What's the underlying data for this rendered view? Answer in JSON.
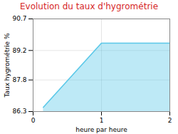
{
  "chart_data": {
    "type": "area",
    "title": "Evolution du taux d'hygrométrie",
    "xlabel": "heure par heure",
    "ylabel": "Taux hygrométrie %",
    "x": [
      0.15,
      1.0,
      2.0
    ],
    "values": [
      86.5,
      89.55,
      89.55
    ],
    "color": "#5bc8e8",
    "xlim": [
      0,
      2
    ],
    "xticks": [
      0,
      1,
      2
    ],
    "ylim": [
      86.3,
      90.7
    ],
    "yticks": [
      86.3,
      87.8,
      89.2,
      90.7
    ],
    "grid": true
  }
}
